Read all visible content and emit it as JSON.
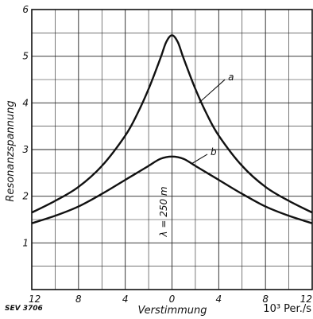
{
  "figure_ref": "SEV 3706",
  "chart_data": {
    "type": "line",
    "title": "",
    "xlabel": "Verstimmung",
    "ylabel": "Resonanzspannung",
    "x_unit": "10³ Per./s",
    "xlim": [
      -12,
      12
    ],
    "ylim": [
      0,
      6
    ],
    "x_tick_values": [
      -12,
      -8,
      -4,
      0,
      4,
      8,
      12
    ],
    "x_tick_labels": [
      "12",
      "8",
      "4",
      "0",
      "4",
      "8",
      "12"
    ],
    "y_tick_values": [
      1,
      2,
      3,
      4,
      5,
      6
    ],
    "y_tick_labels": [
      "1",
      "2",
      "3",
      "4",
      "5",
      "6"
    ],
    "grid": true,
    "annotation": "λ = 250 m",
    "series": [
      {
        "name": "a",
        "x": [
          -12,
          -10,
          -8,
          -6,
          -4,
          -3,
          -2,
          -1,
          -0.5,
          0,
          0.5,
          1,
          2,
          3,
          4,
          6,
          8,
          10,
          12
        ],
        "y": [
          1.65,
          1.9,
          2.2,
          2.65,
          3.3,
          3.75,
          4.3,
          4.95,
          5.3,
          5.45,
          5.3,
          4.95,
          4.3,
          3.75,
          3.3,
          2.65,
          2.2,
          1.9,
          1.65
        ]
      },
      {
        "name": "b",
        "x": [
          -12,
          -10,
          -8,
          -6,
          -4,
          -3,
          -2,
          -1,
          0,
          1,
          2,
          3,
          4,
          6,
          8,
          10,
          12
        ],
        "y": [
          1.42,
          1.58,
          1.78,
          2.05,
          2.35,
          2.5,
          2.65,
          2.8,
          2.85,
          2.8,
          2.65,
          2.5,
          2.35,
          2.05,
          1.78,
          1.58,
          1.42
        ]
      }
    ]
  }
}
